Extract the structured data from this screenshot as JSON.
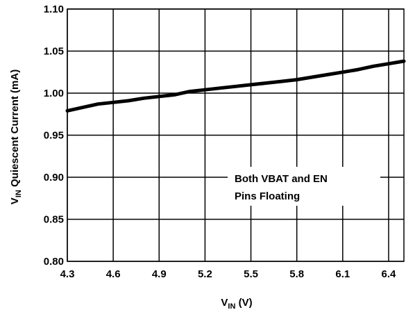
{
  "chart_data": {
    "type": "line",
    "title": "",
    "xlabel": {
      "main": "V",
      "sub": "IN",
      "tail": " (V)"
    },
    "ylabel": {
      "main": "V",
      "sub": "IN",
      "tail": " Quiescent Current (mA)"
    },
    "xlim": [
      4.3,
      6.5
    ],
    "ylim": [
      0.8,
      1.1
    ],
    "xticks": [
      "4.3",
      "4.6",
      "4.9",
      "5.2",
      "5.5",
      "5.8",
      "6.1",
      "6.4"
    ],
    "yticks": [
      "0.80",
      "0.85",
      "0.90",
      "0.95",
      "1.00",
      "1.05",
      "1.10"
    ],
    "grid": true,
    "annotation": [
      "Both VBAT and EN",
      "Pins Floating"
    ],
    "series": [
      {
        "color": "#000000",
        "x": [
          4.3,
          4.4,
          4.5,
          4.6,
          4.7,
          4.8,
          4.9,
          5.0,
          5.1,
          5.2,
          5.3,
          5.4,
          5.5,
          5.6,
          5.7,
          5.8,
          5.9,
          6.0,
          6.1,
          6.2,
          6.3,
          6.4,
          6.5
        ],
        "y": [
          0.979,
          0.983,
          0.987,
          0.989,
          0.991,
          0.994,
          0.996,
          0.998,
          1.002,
          1.004,
          1.006,
          1.008,
          1.01,
          1.012,
          1.014,
          1.016,
          1.019,
          1.022,
          1.025,
          1.028,
          1.032,
          1.035,
          1.038
        ]
      }
    ]
  }
}
